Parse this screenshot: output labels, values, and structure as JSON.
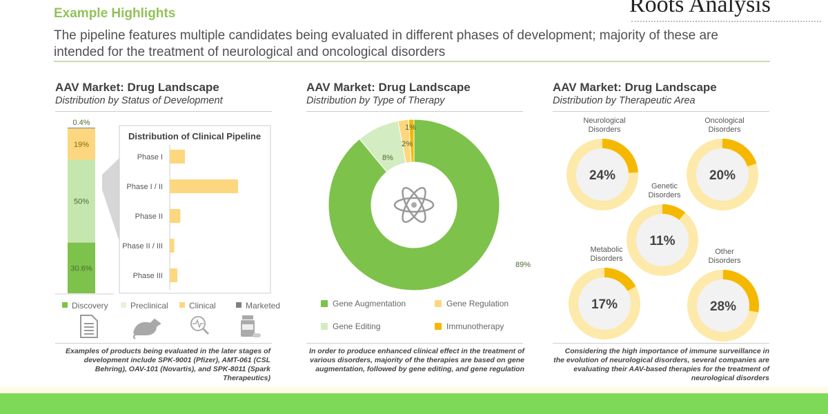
{
  "header": {
    "title": "Example Highlights",
    "subtitle": "The pipeline features multiple candidates being evaluated in different phases of development; majority of these are intended for the treatment of neurological and oncological disorders",
    "logo": "Roots Analysis"
  },
  "colors": {
    "discovery": "#7dc24b",
    "preclinical": "#c6e6b0",
    "clinical": "#fcd77f",
    "marketed": "#808080",
    "immuno": "#f5b800",
    "ring_bg": "#fde9a9",
    "ring_fill": "#f5b800"
  },
  "panels": [
    {
      "title": "AAV Market: Drug Landscape",
      "subtitle": "Distribution by Status of Development",
      "note": "Examples of products being evaluated in the later stages of development include SPK-9001 (Pfizer), AMT-061 (CSL Behring), OAV-101 (Novartis), and SPK-8011 (Spark Therapeutics)",
      "icons": [
        "document-icon",
        "rat-icon",
        "magnifier-pulse-icon",
        "medicine-bottle-icon"
      ]
    },
    {
      "title": "AAV Market: Drug Landscape",
      "subtitle": "Distribution by Type of Therapy",
      "note": "In order to produce enhanced clinical effect in the treatment of various disorders, majority of the therapies are based on gene augmentation, followed by gene editing, and gene regulation",
      "icons": [
        "atom-icon"
      ]
    },
    {
      "title": "AAV Market: Drug Landscape",
      "subtitle": "Distribution by Therapeutic Area",
      "note": "Considering the high importance of immune surveillance in the evolution of neurological disorders, several companies are evaluating their AAV-based therapies for the treatment of neurological disorders"
    }
  ],
  "chart_data": [
    {
      "type": "bar",
      "stacked": true,
      "categories": [
        "Discovery",
        "Preclinical",
        "Clinical",
        "Marketed"
      ],
      "values": [
        30.6,
        50,
        19,
        0.4
      ],
      "labels": [
        "30.6%",
        "50%",
        "19%",
        "0.4%"
      ],
      "legend": [
        "Discovery",
        "Preclinical",
        "Clinical",
        "Marketed"
      ],
      "legend_placement": "bottom"
    },
    {
      "type": "bar",
      "orientation": "horizontal",
      "title": "Distribution of Clinical Pipeline",
      "categories": [
        "Phase I",
        "Phase I / II",
        "Phase II",
        "Phase II / III",
        "Phase III"
      ],
      "values": [
        10,
        45,
        7,
        3,
        5
      ]
    },
    {
      "type": "pie",
      "donut": true,
      "categories": [
        "Gene Augmentation",
        "Gene Editing",
        "Gene Regulation",
        "Immunotherapy"
      ],
      "values": [
        89,
        8,
        2,
        1
      ],
      "labels": [
        "89%",
        "8%",
        "2%",
        "1%"
      ],
      "legend_placement": "bottom"
    },
    {
      "type": "pie",
      "donut": true,
      "multiple": true,
      "categories": [
        "Neurological Disorders",
        "Oncological Disorders",
        "Genetic Disorders",
        "Metabolic Disorders",
        "Other Disorders"
      ],
      "values": [
        24,
        20,
        11,
        17,
        28
      ],
      "labels": [
        "24%",
        "20%",
        "11%",
        "17%",
        "28%"
      ]
    }
  ]
}
